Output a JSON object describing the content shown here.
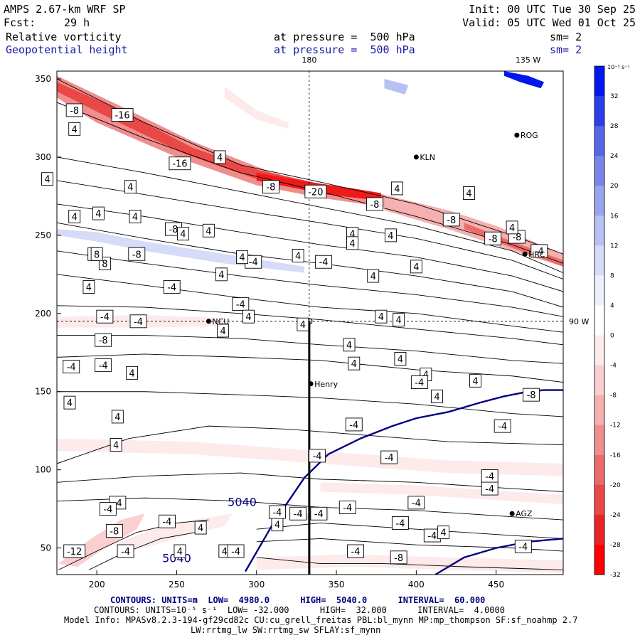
{
  "header": {
    "title": "AMPS 2.67-km WRF SP",
    "init": "Init: 00 UTC Tue 30 Sep 25",
    "fcst_label": "Fcst:",
    "fcst_value": "29 h",
    "valid": "Valid: 05 UTC Wed 01 Oct 25",
    "field1": "Relative vorticity",
    "field1_level": "at pressure =  500 hPa",
    "field1_sm": "sm= 2",
    "field2": "Geopotential height",
    "field2_level": "at pressure =  500 hPa",
    "field2_sm": "sm= 2"
  },
  "colors": {
    "contour_height": "#000080",
    "positive": "#0000e0",
    "negative": "#ee0000",
    "title_blue": "#1a1aa6"
  },
  "chart_data": {
    "type": "contour",
    "x_ticks": [
      200,
      250,
      300,
      350,
      400,
      450
    ],
    "y_ticks": [
      50,
      100,
      150,
      200,
      250,
      300,
      350
    ],
    "xlim": [
      175,
      492
    ],
    "ylim": [
      33,
      355
    ],
    "meridian_labels": [
      {
        "text": "180",
        "x": 333,
        "y": 355,
        "side": "top"
      },
      {
        "text": "135 W",
        "x": 470,
        "y": 355,
        "side": "top"
      },
      {
        "text": "90 W",
        "x": 492,
        "y": 195,
        "side": "right"
      }
    ],
    "stations": [
      {
        "name": "KLN",
        "x": 400,
        "y": 300
      },
      {
        "name": "ROG",
        "x": 463,
        "y": 314
      },
      {
        "name": "HRC",
        "x": 468,
        "y": 238
      },
      {
        "name": "NCU",
        "x": 270,
        "y": 195
      },
      {
        "name": "Henry",
        "x": 334,
        "y": 155
      },
      {
        "name": "AGZ",
        "x": 460,
        "y": 72
      }
    ],
    "cross_section_x": 333,
    "height_contours": [
      {
        "label": "5040",
        "label_at": [
          291,
          77
        ],
        "x": [
          293,
          310,
          330,
          345,
          365,
          385,
          400,
          420,
          440,
          455,
          470,
          480,
          492
        ],
        "y": [
          35,
          65,
          95,
          110,
          120,
          128,
          133,
          137,
          143,
          147,
          150,
          151,
          151
        ]
      },
      {
        "label": "5040",
        "label_at": [
          250,
          41
        ],
        "x": [
          412,
          430,
          450,
          470,
          492
        ],
        "y": [
          33,
          44,
          50,
          54,
          56
        ]
      }
    ],
    "vorticity_labels": [
      {
        "text": "-8",
        "x": 186,
        "y": 330
      },
      {
        "text": "-16",
        "x": 216,
        "y": 327
      },
      {
        "text": "4",
        "x": 186,
        "y": 318
      },
      {
        "text": "-16",
        "x": 252,
        "y": 296
      },
      {
        "text": "4",
        "x": 169,
        "y": 286
      },
      {
        "text": "-8",
        "x": 309,
        "y": 281
      },
      {
        "text": "-20",
        "x": 337,
        "y": 278
      },
      {
        "text": "4",
        "x": 277,
        "y": 300
      },
      {
        "text": "4",
        "x": 221,
        "y": 281
      },
      {
        "text": "-8",
        "x": 374,
        "y": 270
      },
      {
        "text": "4",
        "x": 201,
        "y": 264
      },
      {
        "text": "-8",
        "x": 422,
        "y": 260
      },
      {
        "text": "4",
        "x": 186,
        "y": 262
      },
      {
        "text": "4",
        "x": 224,
        "y": 262
      },
      {
        "text": "4",
        "x": 388,
        "y": 280
      },
      {
        "text": "4",
        "x": 433,
        "y": 277
      },
      {
        "text": "4",
        "x": 270,
        "y": 253
      },
      {
        "text": "-8",
        "x": 448,
        "y": 248
      },
      {
        "text": "-8",
        "x": 463,
        "y": 249
      },
      {
        "text": "4",
        "x": 460,
        "y": 255
      },
      {
        "text": "-4",
        "x": 477,
        "y": 240
      },
      {
        "text": "4",
        "x": 360,
        "y": 251
      },
      {
        "text": "4",
        "x": 384,
        "y": 250
      },
      {
        "text": "-8",
        "x": 248,
        "y": 254
      },
      {
        "text": "4",
        "x": 254,
        "y": 251
      },
      {
        "text": "-8",
        "x": 225,
        "y": 238
      },
      {
        "text": "4",
        "x": 198,
        "y": 238
      },
      {
        "text": "8",
        "x": 205,
        "y": 232
      },
      {
        "text": "8",
        "x": 200,
        "y": 238
      },
      {
        "text": "-4",
        "x": 298,
        "y": 233
      },
      {
        "text": "4",
        "x": 291,
        "y": 236
      },
      {
        "text": "4",
        "x": 400,
        "y": 230
      },
      {
        "text": "-4",
        "x": 342,
        "y": 233
      },
      {
        "text": "4",
        "x": 326,
        "y": 237
      },
      {
        "text": "4",
        "x": 360,
        "y": 245
      },
      {
        "text": "4",
        "x": 373,
        "y": 224
      },
      {
        "text": "4",
        "x": 278,
        "y": 225
      },
      {
        "text": "4",
        "x": 195,
        "y": 217
      },
      {
        "text": "-4",
        "x": 290,
        "y": 206
      },
      {
        "text": "-4",
        "x": 247,
        "y": 217
      },
      {
        "text": "4",
        "x": 279,
        "y": 189
      },
      {
        "text": "4",
        "x": 295,
        "y": 198
      },
      {
        "text": "-4",
        "x": 226,
        "y": 195
      },
      {
        "text": "-4",
        "x": 205,
        "y": 198
      },
      {
        "text": "-8",
        "x": 204,
        "y": 183
      },
      {
        "text": "4",
        "x": 329,
        "y": 193
      },
      {
        "text": "4",
        "x": 378,
        "y": 198
      },
      {
        "text": "4",
        "x": 389,
        "y": 196
      },
      {
        "text": "4",
        "x": 358,
        "y": 180
      },
      {
        "text": "4",
        "x": 361,
        "y": 168
      },
      {
        "text": "4",
        "x": 390,
        "y": 171
      },
      {
        "text": "4",
        "x": 406,
        "y": 161
      },
      {
        "text": "-4",
        "x": 184,
        "y": 166
      },
      {
        "text": "-4",
        "x": 204,
        "y": 167
      },
      {
        "text": "-4",
        "x": 402,
        "y": 156
      },
      {
        "text": "4",
        "x": 222,
        "y": 162
      },
      {
        "text": "4",
        "x": 437,
        "y": 157
      },
      {
        "text": "-8",
        "x": 472,
        "y": 148
      },
      {
        "text": "4",
        "x": 413,
        "y": 147
      },
      {
        "text": "-4",
        "x": 454,
        "y": 128
      },
      {
        "text": "4",
        "x": 183,
        "y": 143
      },
      {
        "text": "4",
        "x": 213,
        "y": 134
      },
      {
        "text": "4",
        "x": 212,
        "y": 116
      },
      {
        "text": "-4",
        "x": 361,
        "y": 129
      },
      {
        "text": "-4",
        "x": 383,
        "y": 108
      },
      {
        "text": "-4",
        "x": 338,
        "y": 109
      },
      {
        "text": "-4",
        "x": 446,
        "y": 96
      },
      {
        "text": "-4",
        "x": 446,
        "y": 88
      },
      {
        "text": "-4",
        "x": 213,
        "y": 79
      },
      {
        "text": "-4",
        "x": 357,
        "y": 76
      },
      {
        "text": "-4",
        "x": 326,
        "y": 72
      },
      {
        "text": "-4",
        "x": 339,
        "y": 72
      },
      {
        "text": "-4",
        "x": 207,
        "y": 75
      },
      {
        "text": "-8",
        "x": 211,
        "y": 61
      },
      {
        "text": "-4",
        "x": 244,
        "y": 67
      },
      {
        "text": "4",
        "x": 265,
        "y": 63
      },
      {
        "text": "4",
        "x": 313,
        "y": 65
      },
      {
        "text": "-4",
        "x": 313,
        "y": 73
      },
      {
        "text": "-4",
        "x": 390,
        "y": 66
      },
      {
        "text": "-4",
        "x": 410,
        "y": 58
      },
      {
        "text": "4",
        "x": 417,
        "y": 60
      },
      {
        "text": "-4",
        "x": 400,
        "y": 79
      },
      {
        "text": "-4",
        "x": 467,
        "y": 51
      },
      {
        "text": "-12",
        "x": 186,
        "y": 48
      },
      {
        "text": "-4",
        "x": 218,
        "y": 48
      },
      {
        "text": "4",
        "x": 252,
        "y": 48
      },
      {
        "text": "4",
        "x": 280,
        "y": 48
      },
      {
        "text": "-4",
        "x": 287,
        "y": 48
      },
      {
        "text": "-8",
        "x": 389,
        "y": 44
      },
      {
        "text": "-4",
        "x": 362,
        "y": 48
      }
    ],
    "colorbar": {
      "unit_label": "10⁻⁵ s⁻¹",
      "levels": [
        32,
        28,
        24,
        20,
        16,
        12,
        8,
        4,
        0,
        -4,
        -8,
        -12,
        -16,
        -20,
        -24,
        -28,
        -32
      ],
      "colors": [
        "#0018ee",
        "#2a3fe8",
        "#5566e6",
        "#7985e8",
        "#98a4ee",
        "#b8c1f3",
        "#d5dbf8",
        "#edf0fc",
        "#ffffff",
        "#fdeaea",
        "#f9cfcf",
        "#f5b0b0",
        "#f08e8e",
        "#ec6a6a",
        "#ea4747",
        "#ea2424",
        "#ff0000"
      ]
    }
  },
  "footer": {
    "line1": "CONTOURS: UNITS=m  LOW=  4980.0      HIGH=  5040.0      INTERVAL=  60.000",
    "line2": "CONTOURS: UNITS=10⁻⁵ s⁻¹  LOW= -32.000      HIGH=  32.000      INTERVAL=  4.0000",
    "line3": "Model Info: MPASv8.2.3-194-gf29cd82c CU:cu_grell_freitas PBL:bl_mynn MP:mp_thompson SF:sf_noahmp 2.7",
    "line4": "LW:rrtmg_lw SW:rrtmg_sw SFLAY:sf_mynn"
  }
}
